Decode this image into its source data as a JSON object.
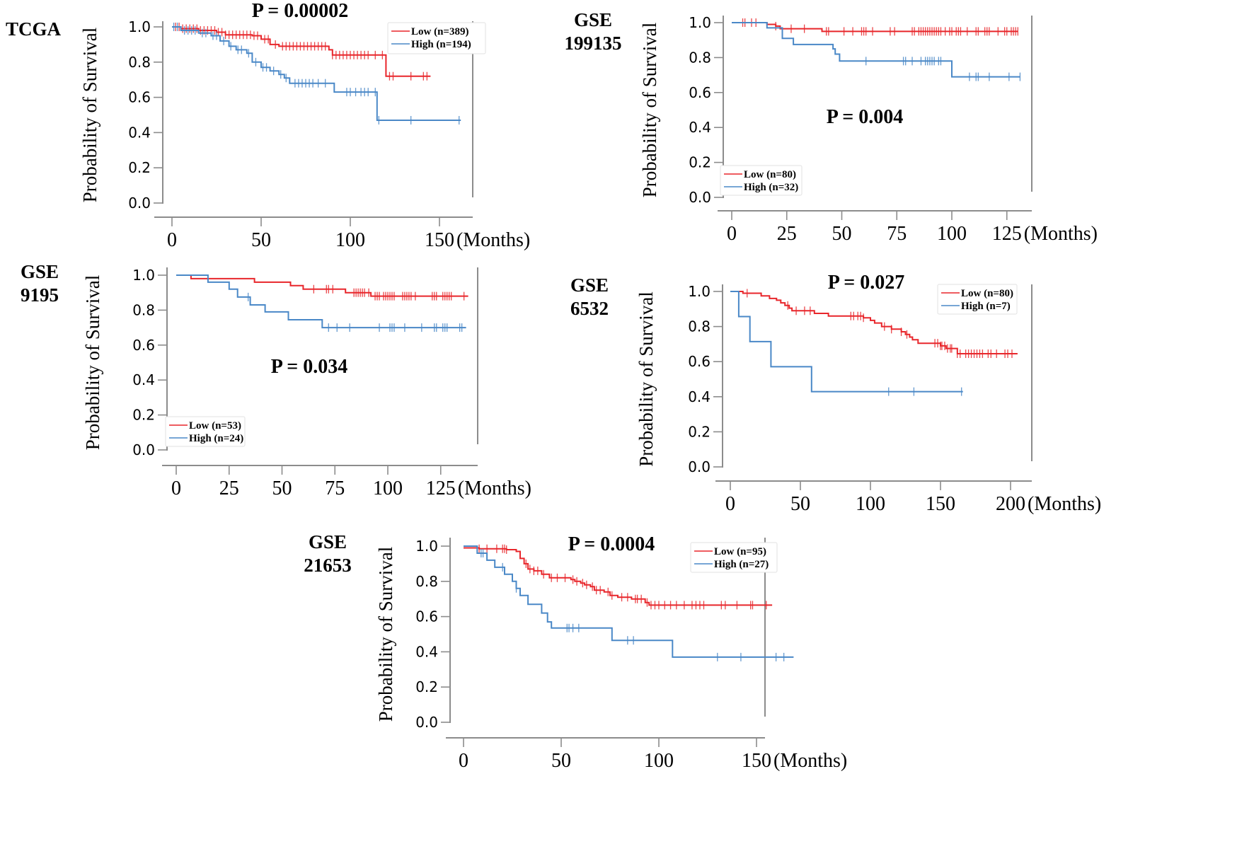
{
  "figure": {
    "ylabel": "Probability of Survival",
    "xunit": "(Months)",
    "colors": {
      "low": "#e8262b",
      "high": "#4a88c7"
    }
  },
  "chart_data": [
    {
      "type": "line",
      "subtype": "kaplan-meier",
      "cohort": "TCGA",
      "cohort_lines": [
        "TCGA"
      ],
      "pvalue": "P = 0.00002",
      "ylabel": "Probability of Survival",
      "xlabel": "(Months)",
      "ylim": [
        0,
        1.0
      ],
      "yticks": [
        "0.0",
        "0.2",
        "0.4",
        "0.6",
        "0.8",
        "1.0"
      ],
      "xlim": [
        -10,
        170
      ],
      "xticks": [
        "0",
        "50",
        "100",
        "150"
      ],
      "legend": "top-right",
      "series": [
        {
          "name": "Low (n=389)",
          "group": "low",
          "steps": [
            [
              0,
              1.0
            ],
            [
              5,
              0.99
            ],
            [
              15,
              0.98
            ],
            [
              25,
              0.97
            ],
            [
              30,
              0.955
            ],
            [
              45,
              0.95
            ],
            [
              50,
              0.93
            ],
            [
              55,
              0.9
            ],
            [
              60,
              0.89
            ],
            [
              88,
              0.87
            ],
            [
              90,
              0.84
            ],
            [
              120,
              0.72
            ],
            [
              145,
              0.72
            ]
          ],
          "censors": [
            2,
            4,
            6,
            8,
            10,
            12,
            14,
            16,
            18,
            20,
            22,
            24,
            26,
            28,
            30,
            32,
            34,
            36,
            38,
            40,
            42,
            44,
            46,
            48,
            52,
            54,
            58,
            62,
            64,
            66,
            68,
            70,
            72,
            74,
            76,
            78,
            80,
            82,
            84,
            86,
            90,
            92,
            94,
            96,
            98,
            100,
            102,
            104,
            106,
            108,
            110,
            114,
            118,
            122,
            124,
            134,
            141,
            143
          ]
        },
        {
          "name": "High (n=194)",
          "group": "high",
          "steps": [
            [
              0,
              1.0
            ],
            [
              5,
              0.98
            ],
            [
              15,
              0.965
            ],
            [
              22,
              0.95
            ],
            [
              27,
              0.92
            ],
            [
              32,
              0.89
            ],
            [
              36,
              0.87
            ],
            [
              42,
              0.85
            ],
            [
              45,
              0.8
            ],
            [
              50,
              0.77
            ],
            [
              55,
              0.75
            ],
            [
              60,
              0.73
            ],
            [
              63,
              0.71
            ],
            [
              66,
              0.68
            ],
            [
              91,
              0.63
            ],
            [
              115,
              0.47
            ],
            [
              162,
              0.47
            ]
          ],
          "censors": [
            1,
            3,
            7,
            9,
            11,
            13,
            17,
            19,
            23,
            25,
            29,
            33,
            37,
            39,
            43,
            47,
            51,
            53,
            57,
            61,
            64,
            69,
            71,
            73,
            75,
            77,
            79,
            82,
            86,
            98,
            100,
            103,
            106,
            108,
            110,
            114,
            116,
            134,
            161
          ]
        }
      ]
    },
    {
      "type": "line",
      "subtype": "kaplan-meier",
      "cohort": "GSE 199135",
      "cohort_lines": [
        "GSE",
        "199135"
      ],
      "pvalue": "P = 0.004",
      "ylabel": "Probability of Survival",
      "xlabel": "(Months)",
      "ylim": [
        0,
        1.0
      ],
      "yticks": [
        "0.0",
        "0.2",
        "0.4",
        "0.6",
        "0.8",
        "1.0"
      ],
      "xlim": [
        -6,
        137
      ],
      "xticks": [
        "0",
        "25",
        "50",
        "75",
        "100",
        "125"
      ],
      "legend": "bottom-left",
      "series": [
        {
          "name": "Low (n=80)",
          "group": "low",
          "steps": [
            [
              0,
              1.0
            ],
            [
              16,
              0.99
            ],
            [
              20,
              0.98
            ],
            [
              22,
              0.965
            ],
            [
              41,
              0.95
            ],
            [
              130,
              0.95
            ]
          ],
          "censors": [
            5,
            6,
            9,
            11,
            20,
            27,
            33,
            43,
            44,
            51,
            55,
            59,
            60,
            61,
            64,
            72,
            74,
            82,
            83,
            85,
            86,
            87,
            88,
            89,
            90,
            91,
            92,
            93,
            94,
            95,
            97,
            99,
            100,
            102,
            103,
            104,
            107,
            111,
            112,
            115,
            116,
            117,
            121,
            124,
            125,
            127,
            128,
            129,
            130
          ]
        },
        {
          "name": "High (n=32)",
          "group": "high",
          "steps": [
            [
              0,
              1.0
            ],
            [
              16,
              0.97
            ],
            [
              23,
              0.91
            ],
            [
              28,
              0.875
            ],
            [
              46,
              0.85
            ],
            [
              47,
              0.82
            ],
            [
              49,
              0.78
            ],
            [
              100,
              0.69
            ],
            [
              131,
              0.69
            ]
          ],
          "censors": [
            61,
            78,
            79,
            82,
            86,
            88,
            89,
            90,
            91,
            92,
            94,
            95,
            108,
            111,
            112,
            117,
            126,
            131
          ]
        }
      ]
    },
    {
      "type": "line",
      "subtype": "kaplan-meier",
      "cohort": "GSE 9195",
      "cohort_lines": [
        "GSE",
        "9195"
      ],
      "pvalue": "P = 0.034",
      "ylabel": "Probability of Survival",
      "xlabel": "(Months)",
      "ylim": [
        0,
        1.0
      ],
      "yticks": [
        "0.0",
        "0.2",
        "0.4",
        "0.6",
        "0.8",
        "1.0"
      ],
      "xlim": [
        -6,
        145
      ],
      "xticks": [
        "0",
        "25",
        "50",
        "75",
        "100",
        "125"
      ],
      "legend": "bottom-left",
      "series": [
        {
          "name": "Low (n=53)",
          "group": "low",
          "steps": [
            [
              0,
              1.0
            ],
            [
              7,
              0.98
            ],
            [
              37,
              0.96
            ],
            [
              54,
              0.94
            ],
            [
              60,
              0.92
            ],
            [
              80,
              0.9
            ],
            [
              92,
              0.88
            ],
            [
              138,
              0.88
            ]
          ],
          "censors": [
            65,
            71,
            72,
            74,
            84,
            85,
            86,
            87,
            88,
            89,
            91,
            94,
            95,
            96,
            98,
            99,
            100,
            101,
            102,
            103,
            107,
            108,
            109,
            110,
            111,
            113,
            121,
            122,
            123,
            126,
            127,
            128,
            129,
            130,
            136
          ]
        },
        {
          "name": "High (n=24)",
          "group": "high",
          "steps": [
            [
              0,
              1.0
            ],
            [
              15,
              0.96
            ],
            [
              25,
              0.92
            ],
            [
              29,
              0.875
            ],
            [
              35,
              0.83
            ],
            [
              42,
              0.79
            ],
            [
              53,
              0.745
            ],
            [
              69,
              0.7
            ],
            [
              137,
              0.7
            ]
          ],
          "censors": [
            34,
            72,
            76,
            82,
            96,
            101,
            102,
            103,
            108,
            116,
            122,
            123,
            126,
            127,
            128,
            134,
            135
          ]
        }
      ]
    },
    {
      "type": "line",
      "subtype": "kaplan-meier",
      "cohort": "GSE 6532",
      "cohort_lines": [
        "GSE",
        "6532"
      ],
      "pvalue": "P = 0.027",
      "ylabel": "Probability of Survival",
      "xlabel": "(Months)",
      "ylim": [
        0,
        1.0
      ],
      "yticks": [
        "0.0",
        "0.2",
        "0.4",
        "0.6",
        "0.8",
        "1.0"
      ],
      "xlim": [
        -12,
        212
      ],
      "xticks": [
        "0",
        "50",
        "100",
        "150",
        "200"
      ],
      "legend": "top-right",
      "series": [
        {
          "name": "Low (n=80)",
          "group": "low",
          "steps": [
            [
              0,
              1.0
            ],
            [
              9,
              0.99
            ],
            [
              22,
              0.975
            ],
            [
              28,
              0.96
            ],
            [
              33,
              0.95
            ],
            [
              36,
              0.935
            ],
            [
              39,
              0.92
            ],
            [
              42,
              0.905
            ],
            [
              44,
              0.89
            ],
            [
              60,
              0.875
            ],
            [
              70,
              0.86
            ],
            [
              95,
              0.85
            ],
            [
              100,
              0.835
            ],
            [
              103,
              0.82
            ],
            [
              108,
              0.8
            ],
            [
              115,
              0.785
            ],
            [
              122,
              0.77
            ],
            [
              125,
              0.755
            ],
            [
              128,
              0.74
            ],
            [
              130,
              0.725
            ],
            [
              134,
              0.705
            ],
            [
              150,
              0.69
            ],
            [
              154,
              0.675
            ],
            [
              162,
              0.645
            ],
            [
              205,
              0.645
            ]
          ],
          "censors": [
            12,
            41,
            47,
            53,
            57,
            86,
            88,
            91,
            93,
            95,
            110,
            115,
            122,
            126,
            146,
            148,
            150,
            151,
            153,
            155,
            157,
            158,
            162,
            164,
            168,
            170,
            172,
            174,
            176,
            178,
            180,
            184,
            186,
            190,
            196,
            198,
            201
          ]
        },
        {
          "name": "High (n=7)",
          "group": "high",
          "steps": [
            [
              0,
              1.0
            ],
            [
              6,
              0.857
            ],
            [
              14,
              0.714
            ],
            [
              29,
              0.571
            ],
            [
              58,
              0.429
            ],
            [
              166,
              0.429
            ]
          ],
          "censors": [
            113,
            131,
            165
          ]
        }
      ]
    },
    {
      "type": "line",
      "subtype": "kaplan-meier",
      "cohort": "GSE 21653",
      "cohort_lines": [
        "GSE",
        "21653"
      ],
      "pvalue": "P = 0.0004",
      "ylabel": "Probability of Survival",
      "xlabel": "(Months)",
      "ylim": [
        0,
        1.0
      ],
      "yticks": [
        "0.0",
        "0.2",
        "0.4",
        "0.6",
        "0.8",
        "1.0"
      ],
      "xlim": [
        -7,
        157
      ],
      "xticks": [
        "0",
        "50",
        "100",
        "150"
      ],
      "legend": "top-right",
      "series": [
        {
          "name": "Low (n=95)",
          "group": "low",
          "steps": [
            [
              0,
              0.99
            ],
            [
              8,
              0.985
            ],
            [
              22,
              0.98
            ],
            [
              27,
              0.97
            ],
            [
              29,
              0.93
            ],
            [
              31,
              0.9
            ],
            [
              33,
              0.87
            ],
            [
              36,
              0.86
            ],
            [
              40,
              0.84
            ],
            [
              44,
              0.82
            ],
            [
              55,
              0.81
            ],
            [
              57,
              0.8
            ],
            [
              60,
              0.79
            ],
            [
              62,
              0.78
            ],
            [
              65,
              0.77
            ],
            [
              67,
              0.75
            ],
            [
              72,
              0.74
            ],
            [
              75,
              0.72
            ],
            [
              79,
              0.71
            ],
            [
              86,
              0.7
            ],
            [
              93,
              0.68
            ],
            [
              95,
              0.665
            ],
            [
              158,
              0.665
            ]
          ],
          "censors": [
            8,
            12,
            17,
            20,
            21,
            22,
            32,
            34,
            36,
            38,
            41,
            45,
            48,
            52,
            56,
            58,
            61,
            63,
            66,
            68,
            70,
            74,
            76,
            81,
            84,
            88,
            89,
            91,
            94,
            96,
            98,
            100,
            103,
            106,
            109,
            113,
            117,
            119,
            121,
            123,
            132,
            134,
            140,
            147,
            148,
            155
          ]
        },
        {
          "name": "High (n=27)",
          "group": "high",
          "steps": [
            [
              0,
              1.0
            ],
            [
              7,
              0.96
            ],
            [
              12,
              0.92
            ],
            [
              16,
              0.88
            ],
            [
              21,
              0.84
            ],
            [
              25,
              0.8
            ],
            [
              27,
              0.76
            ],
            [
              29,
              0.72
            ],
            [
              33,
              0.67
            ],
            [
              40,
              0.62
            ],
            [
              43,
              0.57
            ],
            [
              45,
              0.535
            ],
            [
              76,
              0.465
            ],
            [
              107,
              0.37
            ],
            [
              169,
              0.37
            ]
          ],
          "censors": [
            9,
            10,
            20,
            27,
            53,
            54,
            56,
            59,
            84,
            87,
            130,
            142,
            160,
            164
          ]
        }
      ]
    }
  ]
}
